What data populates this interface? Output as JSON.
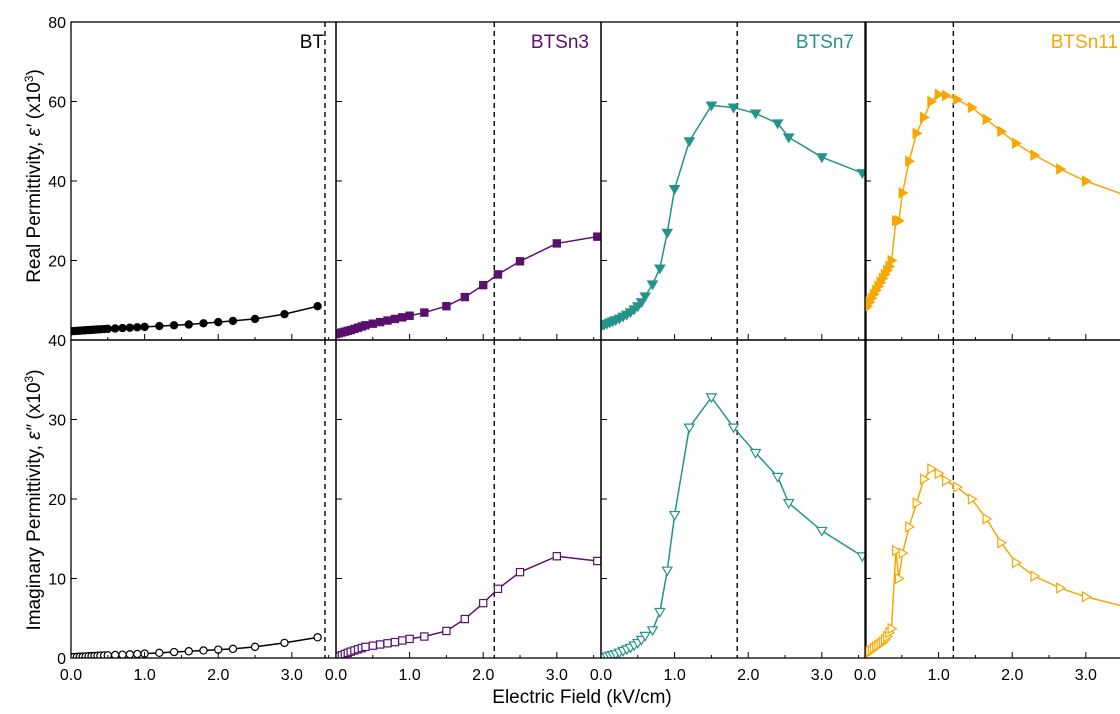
{
  "figure": {
    "xlabel": "Electric Field (kV/cm)",
    "ylabel_top_prefix": "Real Permittivity, ",
    "ylabel_top_symbol": "ε′",
    "ylabel_top_unit": " (x10",
    "ylabel_top_exp": "3",
    "ylabel_top_close": ")",
    "ylabel_bottom_prefix": "Imaginary Permittivity, ",
    "ylabel_bottom_symbol": "ε″",
    "ylabel_bottom_unit": " (x10",
    "ylabel_bottom_exp": "3",
    "ylabel_bottom_close": ")"
  },
  "chart_data": {
    "type": "line",
    "xlim": [
      0,
      3.6
    ],
    "xticks": [
      0.0,
      1.0,
      2.0,
      3.0
    ],
    "xtick_labels": [
      "0.0",
      "1.0",
      "2.0",
      "3.0"
    ],
    "top_ylim": [
      0,
      80
    ],
    "top_yticks": [
      20,
      40,
      60,
      80
    ],
    "top_ytick_labels": [
      "20",
      "40",
      "60",
      "80"
    ],
    "bottom_ylim": [
      0,
      40
    ],
    "bottom_yticks": [
      0,
      10,
      20,
      30,
      40
    ],
    "bottom_ytick_labels": [
      "0",
      "10",
      "20",
      "30",
      "40"
    ],
    "grid": false,
    "panels": [
      {
        "name": "BT",
        "color": "#000000",
        "marker": "circle",
        "dashed_line_x": 3.45,
        "x": [
          0.0,
          0.04,
          0.08,
          0.12,
          0.16,
          0.2,
          0.24,
          0.28,
          0.32,
          0.36,
          0.4,
          0.45,
          0.5,
          0.6,
          0.7,
          0.8,
          0.9,
          1.0,
          1.2,
          1.4,
          1.6,
          1.8,
          2.0,
          2.2,
          2.5,
          2.9,
          3.35
        ],
        "real": [
          2.2,
          2.25,
          2.3,
          2.35,
          2.4,
          2.45,
          2.5,
          2.55,
          2.6,
          2.65,
          2.7,
          2.75,
          2.8,
          2.9,
          3.0,
          3.1,
          3.2,
          3.3,
          3.5,
          3.7,
          3.9,
          4.2,
          4.5,
          4.8,
          5.3,
          6.5,
          8.5
        ],
        "imag": [
          0.1,
          0.12,
          0.14,
          0.16,
          0.18,
          0.2,
          0.22,
          0.24,
          0.26,
          0.28,
          0.3,
          0.32,
          0.34,
          0.38,
          0.42,
          0.46,
          0.5,
          0.55,
          0.65,
          0.75,
          0.85,
          0.95,
          1.05,
          1.15,
          1.4,
          1.9,
          2.6
        ]
      },
      {
        "name": "BTSn3",
        "color": "#5b0f6e",
        "marker": "square",
        "dashed_line_x": 2.15,
        "x": [
          0.0,
          0.04,
          0.08,
          0.12,
          0.16,
          0.2,
          0.25,
          0.3,
          0.35,
          0.4,
          0.5,
          0.6,
          0.7,
          0.8,
          0.9,
          1.0,
          1.2,
          1.5,
          1.75,
          2.0,
          2.2,
          2.5,
          3.0,
          3.55
        ],
        "real": [
          1.5,
          1.7,
          1.9,
          2.1,
          2.3,
          2.5,
          2.8,
          3.1,
          3.4,
          3.7,
          4.1,
          4.5,
          4.9,
          5.3,
          5.7,
          6.1,
          6.9,
          8.5,
          10.8,
          13.8,
          16.5,
          19.8,
          24.3,
          26.0
        ],
        "imag": [
          0.1,
          0.2,
          0.35,
          0.5,
          0.65,
          0.8,
          0.95,
          1.1,
          1.25,
          1.4,
          1.55,
          1.7,
          1.85,
          2.0,
          2.2,
          2.4,
          2.7,
          3.4,
          4.9,
          6.9,
          8.7,
          10.8,
          12.8,
          12.2
        ]
      },
      {
        "name": "BTSn7",
        "color": "#24948a",
        "marker": "triangle-down",
        "dashed_line_x": 1.85,
        "x": [
          0.0,
          0.04,
          0.08,
          0.12,
          0.16,
          0.2,
          0.25,
          0.3,
          0.35,
          0.4,
          0.45,
          0.5,
          0.55,
          0.6,
          0.7,
          0.8,
          0.9,
          1.0,
          1.2,
          1.5,
          1.8,
          2.1,
          2.4,
          2.55,
          3.0,
          3.55
        ],
        "real": [
          3.5,
          3.8,
          4.1,
          4.4,
          4.7,
          5.0,
          5.4,
          5.9,
          6.4,
          7.0,
          7.7,
          8.5,
          9.5,
          11.0,
          14.0,
          18.0,
          27.0,
          38.0,
          50.0,
          59.0,
          58.5,
          57.0,
          54.5,
          51.0,
          46.0,
          42.0
        ],
        "imag": [
          0.0,
          0.1,
          0.2,
          0.3,
          0.4,
          0.5,
          0.7,
          0.9,
          1.1,
          1.3,
          1.6,
          1.9,
          2.3,
          2.8,
          3.5,
          5.8,
          11.0,
          18.0,
          29.0,
          32.8,
          29.0,
          25.8,
          22.8,
          19.5,
          16.0,
          12.8
        ]
      },
      {
        "name": "BTSn11",
        "color": "#f5a800",
        "marker": "triangle-right",
        "dashed_line_x": 1.2,
        "x": [
          0.0,
          0.03,
          0.06,
          0.09,
          0.12,
          0.15,
          0.18,
          0.21,
          0.24,
          0.27,
          0.3,
          0.33,
          0.36,
          0.42,
          0.46,
          0.51,
          0.6,
          0.7,
          0.8,
          0.9,
          1.0,
          1.1,
          1.25,
          1.45,
          1.65,
          1.85,
          2.05,
          2.3,
          2.65,
          3.0,
          3.6
        ],
        "real": [
          8.0,
          8.5,
          9.5,
          10.5,
          11.5,
          12.5,
          13.5,
          14.5,
          15.5,
          16.5,
          17.5,
          18.5,
          20.0,
          30.0,
          30.0,
          37.0,
          45.0,
          52.0,
          56.0,
          60.0,
          61.8,
          61.5,
          60.5,
          58.5,
          55.5,
          52.5,
          49.5,
          46.5,
          43.0,
          40.0,
          36.0
        ],
        "imag": [
          0.4,
          0.6,
          0.8,
          1.0,
          1.2,
          1.4,
          1.6,
          1.8,
          2.0,
          2.3,
          2.7,
          3.2,
          3.7,
          13.5,
          10.0,
          13.2,
          16.5,
          19.5,
          22.5,
          23.8,
          23.2,
          22.3,
          21.5,
          20.0,
          17.5,
          14.5,
          12.0,
          10.3,
          8.8,
          7.7,
          6.3
        ]
      }
    ]
  }
}
